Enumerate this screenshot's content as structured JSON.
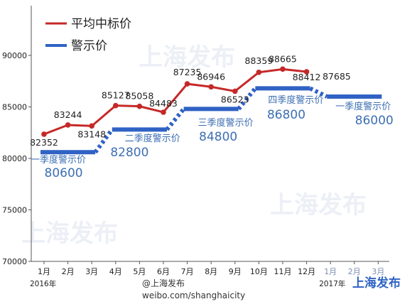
{
  "chart_data": {
    "type": "line",
    "legend": {
      "placement": "top-left",
      "entries": [
        {
          "label": "平均中标价",
          "color": "#c62828"
        },
        {
          "label": "警示价",
          "color": "#2f62c4"
        }
      ]
    },
    "ylim": [
      70000,
      90000
    ],
    "yticks": [
      "70000",
      "75000",
      "80000",
      "85000",
      "90000"
    ],
    "categories": [
      "1月",
      "2月",
      "3月",
      "4月",
      "5月",
      "6月",
      "7月",
      "8月",
      "9月",
      "10月",
      "11月",
      "12月",
      "1月",
      "2月",
      "3月"
    ],
    "year_labels": [
      {
        "text": "2016年",
        "index": 0
      },
      {
        "text": "2017年",
        "index": 12
      }
    ],
    "series": [
      {
        "name": "平均中标价",
        "color": "#c62828",
        "points": [
          {
            "x": "1月",
            "y": 82352
          },
          {
            "x": "2月",
            "y": 83244
          },
          {
            "x": "3月",
            "y": 83148
          },
          {
            "x": "4月",
            "y": 85127
          },
          {
            "x": "5月",
            "y": 85058
          },
          {
            "x": "6月",
            "y": 84483
          },
          {
            "x": "7月",
            "y": 87235
          },
          {
            "x": "8月",
            "y": 86946
          },
          {
            "x": "9月",
            "y": 86523
          },
          {
            "x": "10月",
            "y": 88359
          },
          {
            "x": "11月",
            "y": 88665
          },
          {
            "x": "12月",
            "y": 88412
          }
        ],
        "extra_label": "87685"
      },
      {
        "name": "警示价",
        "color": "#2f62c4",
        "segments": [
          {
            "label": "一季度警示价",
            "value": 80600,
            "from": 0,
            "to": 2
          },
          {
            "label": "二季度警示价",
            "value": 82800,
            "from": 3,
            "to": 5
          },
          {
            "label": "三季度警示价",
            "value": 84800,
            "from": 6,
            "to": 8
          },
          {
            "label": "四季度警示价",
            "value": 86800,
            "from": 9,
            "to": 11
          },
          {
            "label": "一季度警示价",
            "value": 86000,
            "from": 12,
            "to": 14
          }
        ]
      }
    ],
    "grid": false
  },
  "footer": {
    "credit": "weibo.com/shanghaicity",
    "credit_handle": "@上海发布",
    "logo": "上海发布"
  },
  "watermark": "上海发布"
}
